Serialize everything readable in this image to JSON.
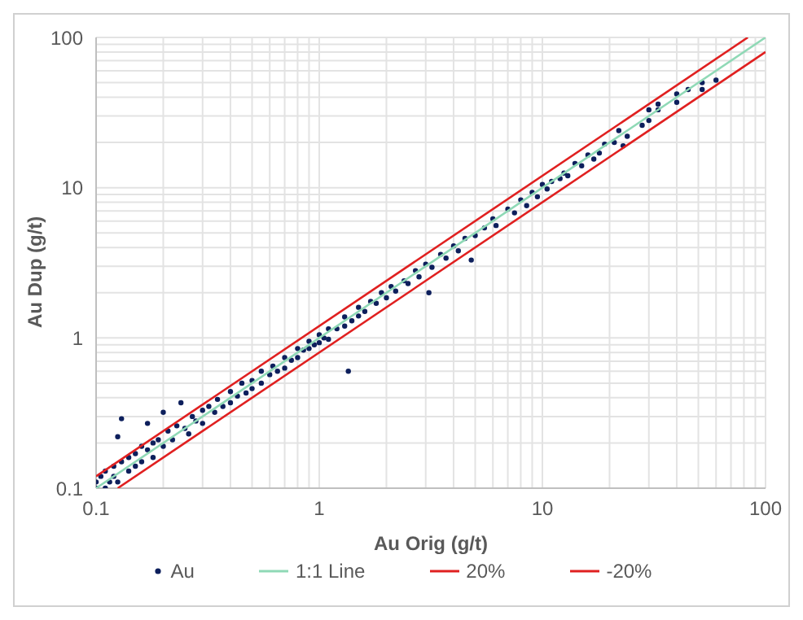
{
  "chart_data": {
    "type": "scatter",
    "xlabel": "Au Orig (g/t)",
    "ylabel": "Au Dup (g/t)",
    "log": "xy",
    "grid": true,
    "legend": "bottom",
    "xlim": [
      0.1,
      100
    ],
    "ylim": [
      0.1,
      100
    ],
    "xticks": [
      0.1,
      {
        "value": 0.2,
        "label": null
      },
      {
        "value": 0.3,
        "label": null
      },
      {
        "value": 0.4,
        "label": null
      },
      {
        "value": 0.5,
        "label": null
      },
      {
        "value": 0.6,
        "label": null
      },
      {
        "value": 0.7,
        "label": null
      },
      {
        "value": 0.8,
        "label": null
      },
      {
        "value": 0.9,
        "label": null
      },
      1,
      {
        "value": 2,
        "label": null
      },
      {
        "value": 3,
        "label": null
      },
      {
        "value": 4,
        "label": null
      },
      {
        "value": 5,
        "label": null
      },
      {
        "value": 6,
        "label": null
      },
      {
        "value": 7,
        "label": null
      },
      {
        "value": 8,
        "label": null
      },
      {
        "value": 9,
        "label": null
      },
      10,
      {
        "value": 20,
        "label": null
      },
      {
        "value": 30,
        "label": null
      },
      {
        "value": 40,
        "label": null
      },
      {
        "value": 50,
        "label": null
      },
      {
        "value": 60,
        "label": null
      },
      {
        "value": 70,
        "label": null
      },
      {
        "value": 80,
        "label": null
      },
      {
        "value": 90,
        "label": null
      },
      100
    ],
    "yticks": [
      0.1,
      {
        "value": 0.2,
        "label": null
      },
      {
        "value": 0.3,
        "label": null
      },
      {
        "value": 0.4,
        "label": null
      },
      {
        "value": 0.5,
        "label": null
      },
      {
        "value": 0.6,
        "label": null
      },
      {
        "value": 0.7,
        "label": null
      },
      {
        "value": 0.8,
        "label": null
      },
      {
        "value": 0.9,
        "label": null
      },
      1,
      {
        "value": 2,
        "label": null
      },
      {
        "value": 3,
        "label": null
      },
      {
        "value": 4,
        "label": null
      },
      {
        "value": 5,
        "label": null
      },
      {
        "value": 6,
        "label": null
      },
      {
        "value": 7,
        "label": null
      },
      {
        "value": 8,
        "label": null
      },
      {
        "value": 9,
        "label": null
      },
      10,
      {
        "value": 20,
        "label": null
      },
      {
        "value": 30,
        "label": null
      },
      {
        "value": 40,
        "label": null
      },
      {
        "value": 50,
        "label": null
      },
      {
        "value": 60,
        "label": null
      },
      {
        "value": 70,
        "label": null
      },
      {
        "value": 80,
        "label": null
      },
      {
        "value": 90,
        "label": null
      },
      100
    ],
    "series": [
      {
        "name": "Au",
        "marker": "circle",
        "color": "#0d1f5c",
        "x": [
          0.1,
          0.1,
          0.105,
          0.11,
          0.11,
          0.115,
          0.12,
          0.12,
          0.125,
          0.13,
          0.13,
          0.125,
          0.14,
          0.14,
          0.15,
          0.15,
          0.16,
          0.16,
          0.17,
          0.17,
          0.18,
          0.18,
          0.19,
          0.2,
          0.2,
          0.21,
          0.22,
          0.23,
          0.24,
          0.25,
          0.26,
          0.27,
          0.28,
          0.3,
          0.3,
          0.32,
          0.34,
          0.35,
          0.37,
          0.4,
          0.4,
          0.43,
          0.45,
          0.47,
          0.5,
          0.5,
          0.55,
          0.55,
          0.6,
          0.62,
          0.65,
          0.7,
          0.7,
          0.75,
          0.8,
          0.8,
          0.85,
          0.9,
          0.9,
          0.95,
          1.0,
          1.0,
          1.05,
          1.1,
          1.1,
          1.2,
          1.3,
          1.3,
          1.35,
          1.4,
          1.5,
          1.5,
          1.6,
          1.7,
          1.8,
          1.9,
          2.0,
          2.1,
          2.2,
          2.4,
          2.5,
          2.7,
          2.8,
          3.0,
          3.1,
          3.2,
          3.5,
          3.7,
          4.0,
          4.2,
          4.5,
          4.8,
          5.0,
          5.5,
          6.0,
          6.2,
          7.0,
          7.5,
          8.0,
          8.5,
          9.0,
          9.5,
          10,
          10.5,
          11,
          12,
          12.5,
          13,
          14,
          15,
          16,
          17,
          18,
          19,
          21,
          22,
          23,
          24,
          28,
          30,
          30,
          33,
          33,
          40,
          40,
          45,
          52,
          52,
          60
        ],
        "values": [
          0.11,
          0.1,
          0.12,
          0.1,
          0.13,
          0.11,
          0.14,
          0.12,
          0.11,
          0.15,
          0.29,
          0.22,
          0.13,
          0.16,
          0.17,
          0.14,
          0.19,
          0.15,
          0.18,
          0.27,
          0.2,
          0.16,
          0.21,
          0.19,
          0.32,
          0.24,
          0.21,
          0.26,
          0.37,
          0.25,
          0.23,
          0.3,
          0.28,
          0.33,
          0.27,
          0.35,
          0.32,
          0.39,
          0.35,
          0.44,
          0.37,
          0.41,
          0.5,
          0.43,
          0.52,
          0.46,
          0.6,
          0.5,
          0.57,
          0.65,
          0.6,
          0.74,
          0.63,
          0.71,
          0.85,
          0.74,
          0.83,
          0.95,
          0.85,
          0.9,
          1.05,
          0.93,
          1.0,
          1.15,
          0.98,
          1.15,
          1.38,
          1.2,
          0.6,
          1.3,
          1.6,
          1.4,
          1.5,
          1.75,
          1.7,
          2.0,
          1.85,
          2.2,
          2.05,
          2.4,
          2.3,
          2.8,
          2.55,
          3.1,
          2.0,
          2.95,
          3.6,
          3.4,
          4.1,
          3.8,
          4.6,
          3.3,
          4.8,
          5.4,
          6.2,
          5.6,
          7.2,
          6.8,
          8.3,
          7.6,
          9.3,
          8.7,
          10.5,
          9.8,
          11,
          11.5,
          12.5,
          12,
          14.5,
          14,
          16.5,
          15.5,
          17,
          19.5,
          20,
          24,
          19,
          22,
          26,
          33,
          28,
          36,
          33,
          42,
          37,
          45,
          50,
          45,
          52
        ]
      },
      {
        "name": "1:1 Line",
        "type": "line",
        "marker": "none",
        "color": "#8fd9b6",
        "x": [
          0.1,
          100
        ],
        "values": [
          0.1,
          100
        ]
      },
      {
        "name": "20%",
        "type": "line",
        "marker": "none",
        "color": "#e02020",
        "x": [
          0.1,
          83.3
        ],
        "values": [
          0.12,
          100
        ]
      },
      {
        "name": "-20%",
        "type": "line",
        "marker": "none",
        "color": "#e02020",
        "x": [
          0.125,
          100
        ],
        "values": [
          0.1,
          80
        ]
      }
    ]
  }
}
